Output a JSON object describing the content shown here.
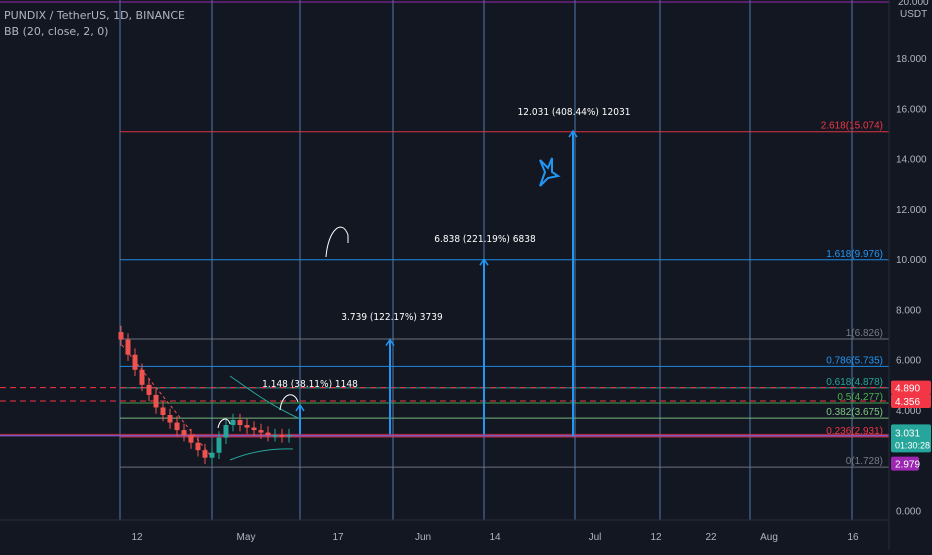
{
  "header": {
    "symbol_line": "PUNDIX / TetherUS, 1D, BINANCE",
    "indicator_line": "BB (20, close, 2, 0)"
  },
  "price_axis": {
    "currency": "USDT",
    "top_partial": "20.000",
    "ticks": [
      "18.000",
      "16.000",
      "14.000",
      "12.000",
      "10.000",
      "8.000",
      "6.000",
      "4.000",
      "0.000"
    ],
    "badges": {
      "upper_red": "4.890",
      "lower_red": "4.356",
      "price": "3.031",
      "countdown": "01:30:28",
      "purple": "2.979"
    }
  },
  "time_axis": [
    "12",
    "May",
    "17",
    "Jun",
    "14",
    "Jul",
    "12",
    "22",
    "Aug",
    "16"
  ],
  "fib_levels": [
    {
      "text": "2.618(15.074)",
      "value": 15.074,
      "color": "#f23645"
    },
    {
      "text": "1.618(9.976)",
      "value": 9.976,
      "color": "#2196f3"
    },
    {
      "text": "1(6.826)",
      "value": 6.826,
      "color": "#787b86"
    },
    {
      "text": "0.786(5.735)",
      "value": 5.735,
      "color": "#2196f3"
    },
    {
      "text": "0.618(4.878)",
      "value": 4.878,
      "color": "#26a69a"
    },
    {
      "text": "0.5(4.277)",
      "value": 4.277,
      "color": "#4caf50"
    },
    {
      "text": "0.382(3.675)",
      "value": 3.675,
      "color": "#81c784"
    },
    {
      "text": "0.236(2.931)",
      "value": 2.931,
      "color": "#f23645"
    },
    {
      "text": "0(1.728)",
      "value": 1.728,
      "color": "#787b86"
    }
  ],
  "measurements": [
    {
      "text": "1.148 (38.11%) 1148"
    },
    {
      "text": "3.739 (122.17%) 3739"
    },
    {
      "text": "6.838 (221.19%) 6838"
    },
    {
      "text": "12.031 (408.44%) 12031"
    }
  ],
  "chart_data": {
    "type": "candlestick",
    "series": [
      {
        "name": "",
        "values": [
          6.8,
          6.2,
          5.6,
          5.0,
          4.6,
          4.1,
          3.8,
          3.5,
          3.2,
          3.0,
          2.7,
          2.4,
          2.1,
          2.3,
          2.9,
          3.4,
          3.6,
          3.4,
          3.3,
          3.2,
          3.1,
          3.0,
          3.0,
          2.95,
          3.0
        ]
      }
    ],
    "ylim": [
      0,
      20
    ],
    "colors": {
      "up": "#26a69a",
      "down": "#ef5350",
      "bb": "#26a69a"
    }
  }
}
